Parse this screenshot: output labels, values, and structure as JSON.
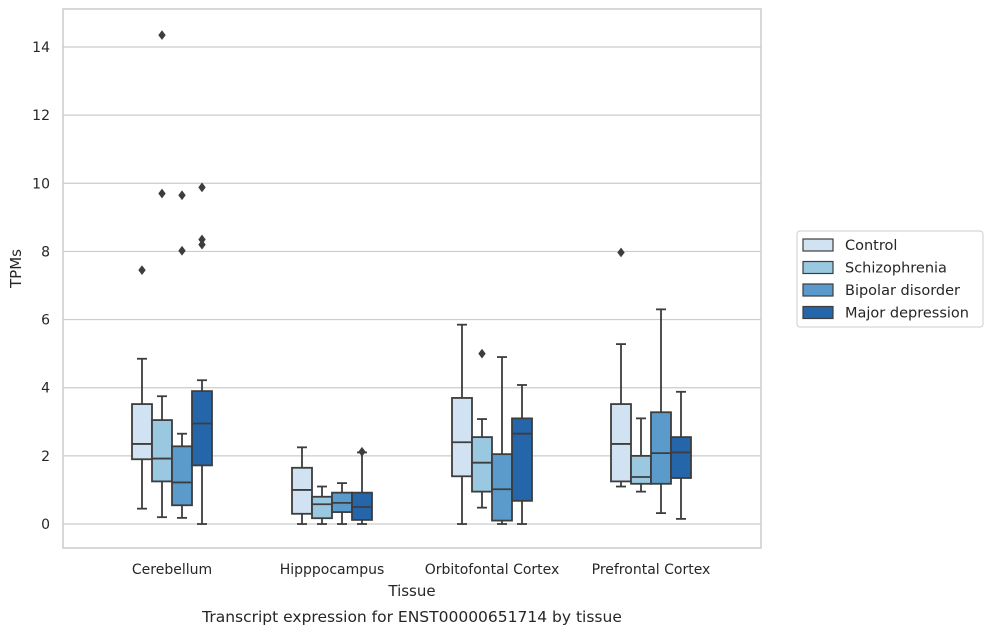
{
  "chart_data": {
    "type": "box",
    "xlabel": "Tissue",
    "ylabel": "TPMs",
    "caption": "Transcript expression for ENST00000651714 by tissue",
    "ylim": [
      -0.7,
      15.1
    ],
    "yticks": [
      0,
      2,
      4,
      6,
      8,
      10,
      12,
      14
    ],
    "grid": "horizontal",
    "legend_position": "right",
    "categories": [
      "Cerebellum",
      "Hipppocampus",
      "Orbitofontal Cortex",
      "Prefrontal Cortex"
    ],
    "series": [
      {
        "name": "Control",
        "color": "#d1e2f2",
        "boxes": [
          {
            "whisker_low": 0.45,
            "q1": 1.9,
            "median": 2.35,
            "q3": 3.52,
            "whisker_high": 4.85,
            "outliers": [
              7.45
            ]
          },
          {
            "whisker_low": 0.0,
            "q1": 0.3,
            "median": 1.0,
            "q3": 1.65,
            "whisker_high": 2.25,
            "outliers": []
          },
          {
            "whisker_low": 0.0,
            "q1": 1.4,
            "median": 2.4,
            "q3": 3.7,
            "whisker_high": 5.85,
            "outliers": []
          },
          {
            "whisker_low": 1.1,
            "q1": 1.25,
            "median": 2.35,
            "q3": 3.52,
            "whisker_high": 5.28,
            "outliers": [
              7.97
            ]
          }
        ]
      },
      {
        "name": "Schizophrenia",
        "color": "#9ac8e0",
        "boxes": [
          {
            "whisker_low": 0.2,
            "q1": 1.25,
            "median": 1.92,
            "q3": 3.05,
            "whisker_high": 3.75,
            "outliers": [
              14.35,
              9.7
            ]
          },
          {
            "whisker_low": 0.0,
            "q1": 0.17,
            "median": 0.58,
            "q3": 0.8,
            "whisker_high": 1.1,
            "outliers": []
          },
          {
            "whisker_low": 0.48,
            "q1": 0.95,
            "median": 1.8,
            "q3": 2.55,
            "whisker_high": 3.08,
            "outliers": [
              5.0
            ]
          },
          {
            "whisker_low": 0.95,
            "q1": 1.18,
            "median": 1.38,
            "q3": 2.0,
            "whisker_high": 3.1,
            "outliers": []
          }
        ]
      },
      {
        "name": "Bipolar disorder",
        "color": "#5b9bcb",
        "boxes": [
          {
            "whisker_low": 0.18,
            "q1": 0.55,
            "median": 1.22,
            "q3": 2.28,
            "whisker_high": 2.65,
            "outliers": [
              9.65,
              8.02
            ]
          },
          {
            "whisker_low": 0.0,
            "q1": 0.35,
            "median": 0.62,
            "q3": 0.92,
            "whisker_high": 1.2,
            "outliers": []
          },
          {
            "whisker_low": 0.0,
            "q1": 0.1,
            "median": 1.02,
            "q3": 2.05,
            "whisker_high": 4.9,
            "outliers": []
          },
          {
            "whisker_low": 0.32,
            "q1": 1.18,
            "median": 2.08,
            "q3": 3.28,
            "whisker_high": 6.3,
            "outliers": []
          }
        ]
      },
      {
        "name": "Major depression",
        "color": "#2565a9",
        "boxes": [
          {
            "whisker_low": 0.0,
            "q1": 1.72,
            "median": 2.95,
            "q3": 3.9,
            "whisker_high": 4.22,
            "outliers": [
              9.88,
              8.35,
              8.2
            ]
          },
          {
            "whisker_low": 0.0,
            "q1": 0.12,
            "median": 0.5,
            "q3": 0.92,
            "whisker_high": 2.1,
            "outliers": [
              2.12
            ]
          },
          {
            "whisker_low": 0.0,
            "q1": 0.68,
            "median": 2.65,
            "q3": 3.1,
            "whisker_high": 4.08,
            "outliers": []
          },
          {
            "whisker_low": 0.15,
            "q1": 1.35,
            "median": 2.1,
            "q3": 2.55,
            "whisker_high": 3.88,
            "outliers": []
          }
        ]
      }
    ]
  }
}
